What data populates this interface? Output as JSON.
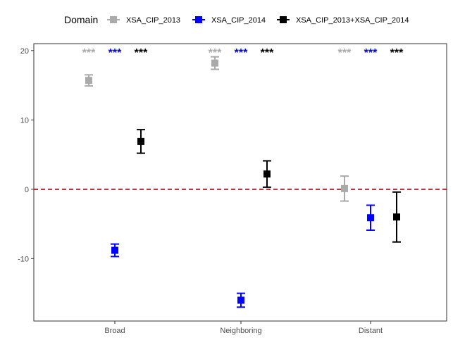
{
  "chart_data": {
    "type": "scatter",
    "categories": [
      "Broad",
      "Neighboring",
      "Distant"
    ],
    "ylim": [
      -19,
      21
    ],
    "yticks": [
      -10,
      0,
      10,
      20
    ],
    "grid": false,
    "reference_line": {
      "y": 0,
      "style": "dashed",
      "color": "#8b0000"
    },
    "legend": {
      "title": "Domain",
      "position": "top"
    },
    "series": [
      {
        "name": "XSA_CIP_2013",
        "color": "#aaaaaa",
        "points": [
          {
            "category": "Broad",
            "y": 15.7,
            "lo": 14.9,
            "hi": 16.5,
            "sig": "***"
          },
          {
            "category": "Neighboring",
            "y": 18.2,
            "lo": 17.3,
            "hi": 19.1,
            "sig": "***"
          },
          {
            "category": "Distant",
            "y": 0.1,
            "lo": -1.7,
            "hi": 1.9,
            "sig": "***"
          }
        ]
      },
      {
        "name": "XSA_CIP_2014",
        "color": "#0000ff",
        "points": [
          {
            "category": "Broad",
            "y": -8.8,
            "lo": -9.7,
            "hi": -7.9,
            "sig": "***"
          },
          {
            "category": "Neighboring",
            "y": -16.0,
            "lo": -17.0,
            "hi": -15.0,
            "sig": "***"
          },
          {
            "category": "Distant",
            "y": -4.1,
            "lo": -5.9,
            "hi": -2.3,
            "sig": "***"
          }
        ]
      },
      {
        "name": "XSA_CIP_2013+XSA_CIP_2014",
        "color": "#000000",
        "points": [
          {
            "category": "Broad",
            "y": 6.9,
            "lo": 5.2,
            "hi": 8.6,
            "sig": "***"
          },
          {
            "category": "Neighboring",
            "y": 2.2,
            "lo": 0.3,
            "hi": 4.1,
            "sig": "***"
          },
          {
            "category": "Distant",
            "y": -4.0,
            "lo": -7.6,
            "hi": -0.4,
            "sig": "***"
          }
        ]
      }
    ]
  }
}
